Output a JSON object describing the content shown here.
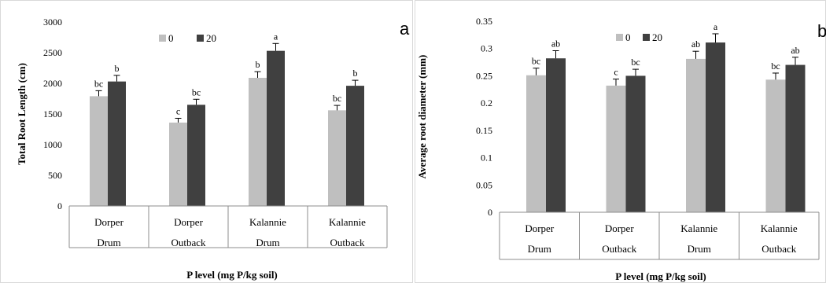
{
  "colors": {
    "series0": "#bfbfbf",
    "series20": "#404040",
    "axis": "#000000",
    "frame": "#d9d9d9",
    "table": "#8c8c8c"
  },
  "chart_data": [
    {
      "type": "bar",
      "panel_letter": "a",
      "ylabel": "Total Root Length (cm)",
      "xlabel": "P level (mg P/kg soil)",
      "ylim": [
        0,
        3000
      ],
      "yticks": [
        "0",
        "500",
        "1000",
        "1500",
        "2000",
        "2500",
        "3000"
      ],
      "categories": [
        {
          "line1": "Dorper",
          "line2": "Drum"
        },
        {
          "line1": "Dorper",
          "line2": "Outback"
        },
        {
          "line1": "Kalannie",
          "line2": "Drum"
        },
        {
          "line1": "Kalannie",
          "line2": "Outback"
        }
      ],
      "legend_position": "top-center",
      "series": [
        {
          "name": "0",
          "values": [
            1790,
            1360,
            2090,
            1560
          ],
          "errors": [
            90,
            70,
            100,
            80
          ],
          "labels": [
            "bc",
            "c",
            "b",
            "bc"
          ]
        },
        {
          "name": "20",
          "values": [
            2030,
            1650,
            2530,
            1960
          ],
          "errors": [
            100,
            90,
            120,
            90
          ],
          "labels": [
            "b",
            "bc",
            "a",
            "b"
          ]
        }
      ]
    },
    {
      "type": "bar",
      "panel_letter": "b",
      "ylabel": "Average root diameter (mm)",
      "xlabel": "P level (mg P/kg soil)",
      "ylim": [
        0,
        0.35
      ],
      "yticks": [
        "0",
        "0.05",
        "0.1",
        "0.15",
        "0.2",
        "0.25",
        "0.3",
        "0.35"
      ],
      "categories": [
        {
          "line1": "Dorper",
          "line2": "Drum"
        },
        {
          "line1": "Dorper",
          "line2": "Outback"
        },
        {
          "line1": "Kalannie",
          "line2": "Drum"
        },
        {
          "line1": "Kalannie",
          "line2": "Outback"
        }
      ],
      "legend_position": "top-center",
      "series": [
        {
          "name": "0",
          "values": [
            0.251,
            0.232,
            0.281,
            0.243
          ],
          "errors": [
            0.013,
            0.012,
            0.014,
            0.012
          ],
          "labels": [
            "bc",
            "c",
            "ab",
            "bc"
          ]
        },
        {
          "name": "20",
          "values": [
            0.282,
            0.25,
            0.311,
            0.27
          ],
          "errors": [
            0.014,
            0.012,
            0.016,
            0.014
          ],
          "labels": [
            "ab",
            "bc",
            "a",
            "ab"
          ]
        }
      ]
    }
  ]
}
